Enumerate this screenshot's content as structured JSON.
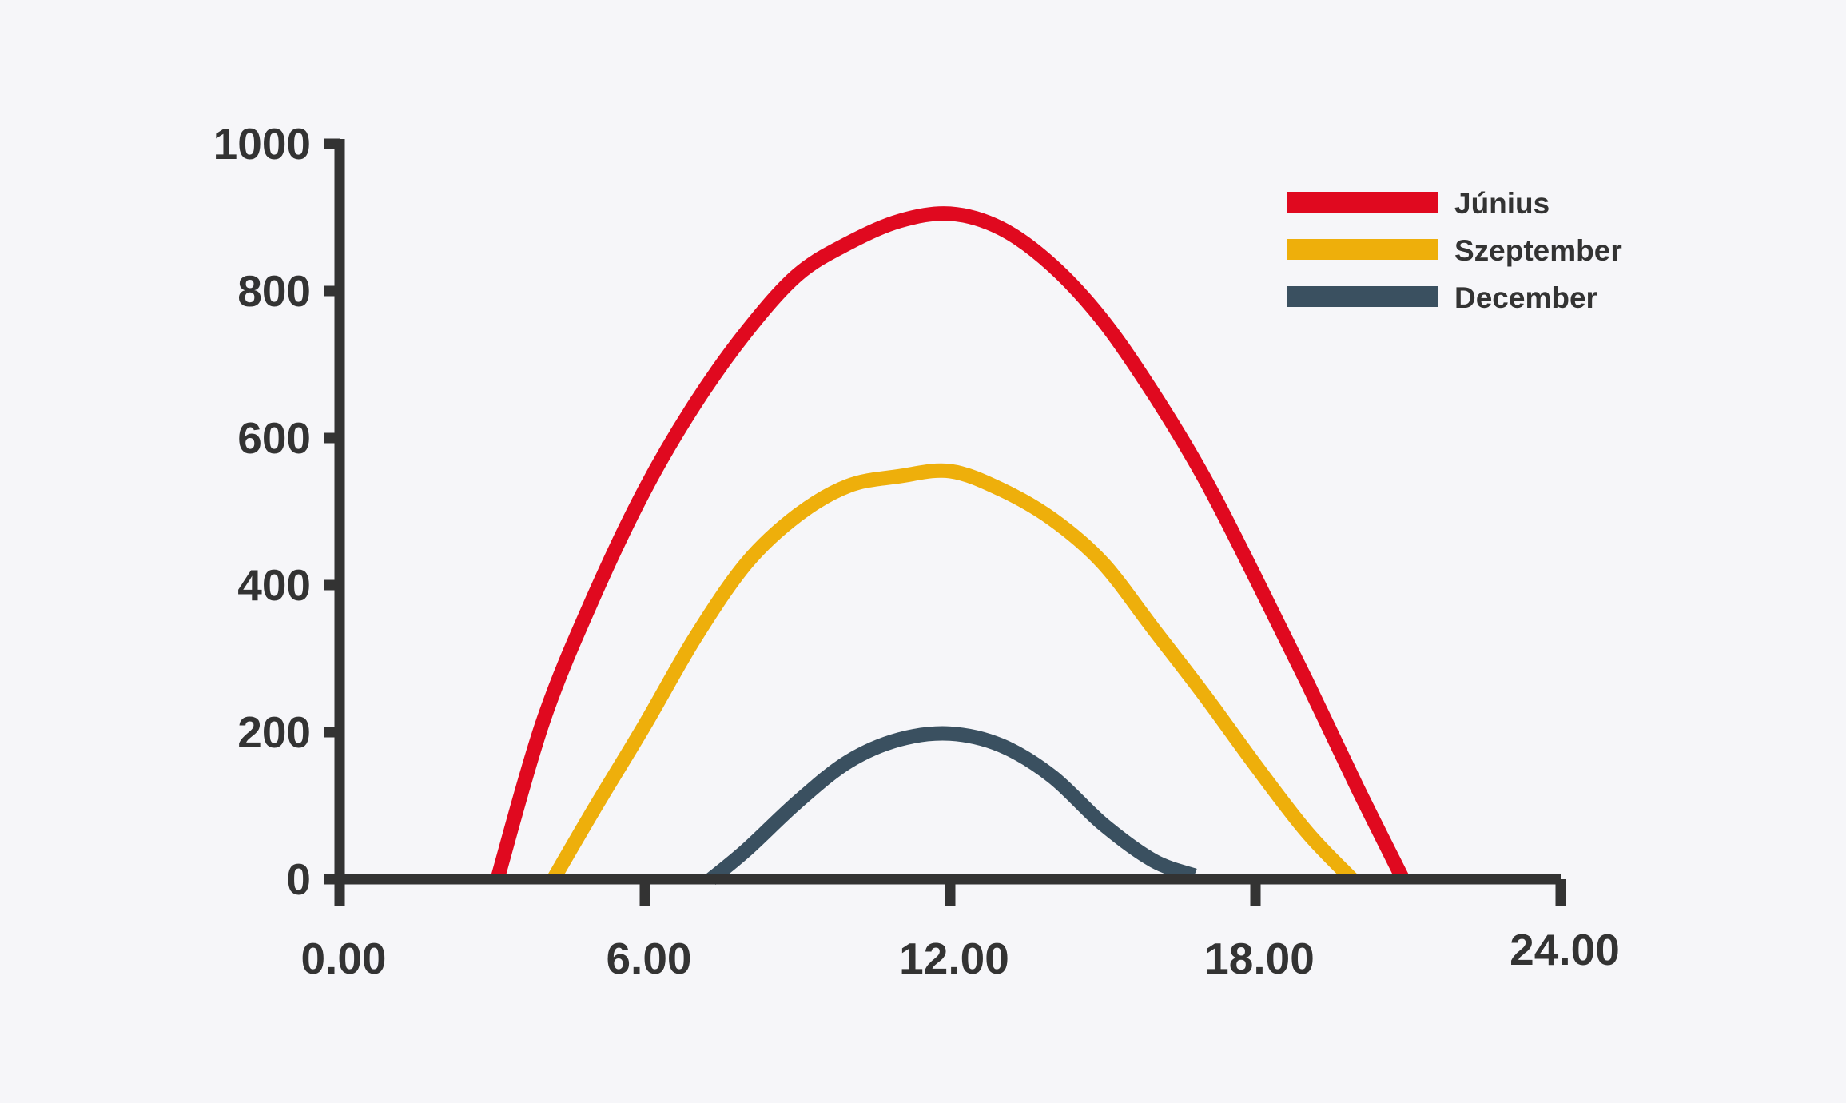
{
  "chart_data": {
    "type": "line",
    "title": "",
    "xlabel": "",
    "ylabel": "",
    "xlim": [
      0,
      24
    ],
    "ylim": [
      0,
      1000
    ],
    "x_ticks": [
      0,
      6,
      12,
      18,
      24
    ],
    "x_tick_labels": [
      "0.00",
      "6.00",
      "12.00",
      "18.00",
      "24.00"
    ],
    "y_ticks": [
      0,
      200,
      400,
      600,
      800,
      1000
    ],
    "y_tick_labels": [
      "0",
      "200",
      "400",
      "600",
      "800",
      "1000"
    ],
    "grid": false,
    "legend_position": "top-right",
    "series": [
      {
        "name": "Június",
        "color": "#e0091f",
        "x": [
          3.1,
          4.0,
          5.0,
          6.0,
          7.0,
          8.0,
          9.0,
          10.0,
          11.0,
          12.0,
          13.0,
          14.0,
          15.0,
          16.0,
          17.0,
          18.0,
          19.0,
          20.0,
          20.9
        ],
        "y": [
          0,
          215,
          385,
          530,
          648,
          745,
          822,
          865,
          895,
          905,
          885,
          835,
          760,
          660,
          545,
          410,
          270,
          125,
          0
        ]
      },
      {
        "name": "Szeptember",
        "color": "#eeaf0b",
        "x": [
          4.2,
          5.0,
          6.0,
          7.0,
          8.0,
          9.0,
          10.0,
          11.0,
          12.0,
          13.0,
          14.0,
          15.0,
          16.0,
          17.0,
          18.0,
          19.0,
          19.9
        ],
        "y": [
          0,
          95,
          210,
          330,
          430,
          495,
          535,
          548,
          555,
          530,
          490,
          430,
          340,
          250,
          155,
          65,
          0
        ]
      },
      {
        "name": "December",
        "color": "#3a5060",
        "x": [
          7.3,
          8.0,
          9.0,
          10.0,
          11.0,
          12.0,
          13.0,
          14.0,
          15.0,
          16.0,
          16.8
        ],
        "y": [
          0,
          40,
          105,
          160,
          190,
          198,
          182,
          140,
          75,
          25,
          5
        ]
      }
    ]
  }
}
